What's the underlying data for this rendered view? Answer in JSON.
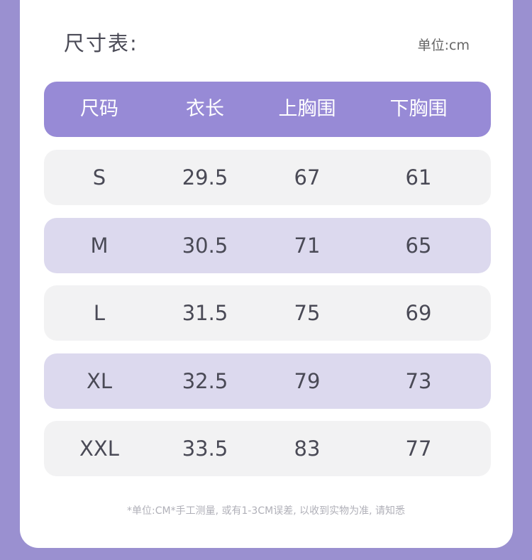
{
  "title": "尺寸表:",
  "unit": "单位:cm",
  "headers": [
    "尺码",
    "衣长",
    "上胸围",
    "下胸围"
  ],
  "rows": [
    [
      "S",
      "29.5",
      "67",
      "61"
    ],
    [
      "M",
      "30.5",
      "71",
      "65"
    ],
    [
      "L",
      "31.5",
      "75",
      "69"
    ],
    [
      "XL",
      "32.5",
      "79",
      "73"
    ],
    [
      "XXL",
      "33.5",
      "83",
      "77"
    ]
  ],
  "note": "*单位:CM*手工测量, 或有1-3CM误差, 以收到实物为准, 请知悉",
  "colors": {
    "background": "#9a90d0",
    "header": "#978ad6",
    "row_light": "#f2f2f3",
    "row_tint": "#dcd9ee",
    "text": "#4a4a56"
  }
}
